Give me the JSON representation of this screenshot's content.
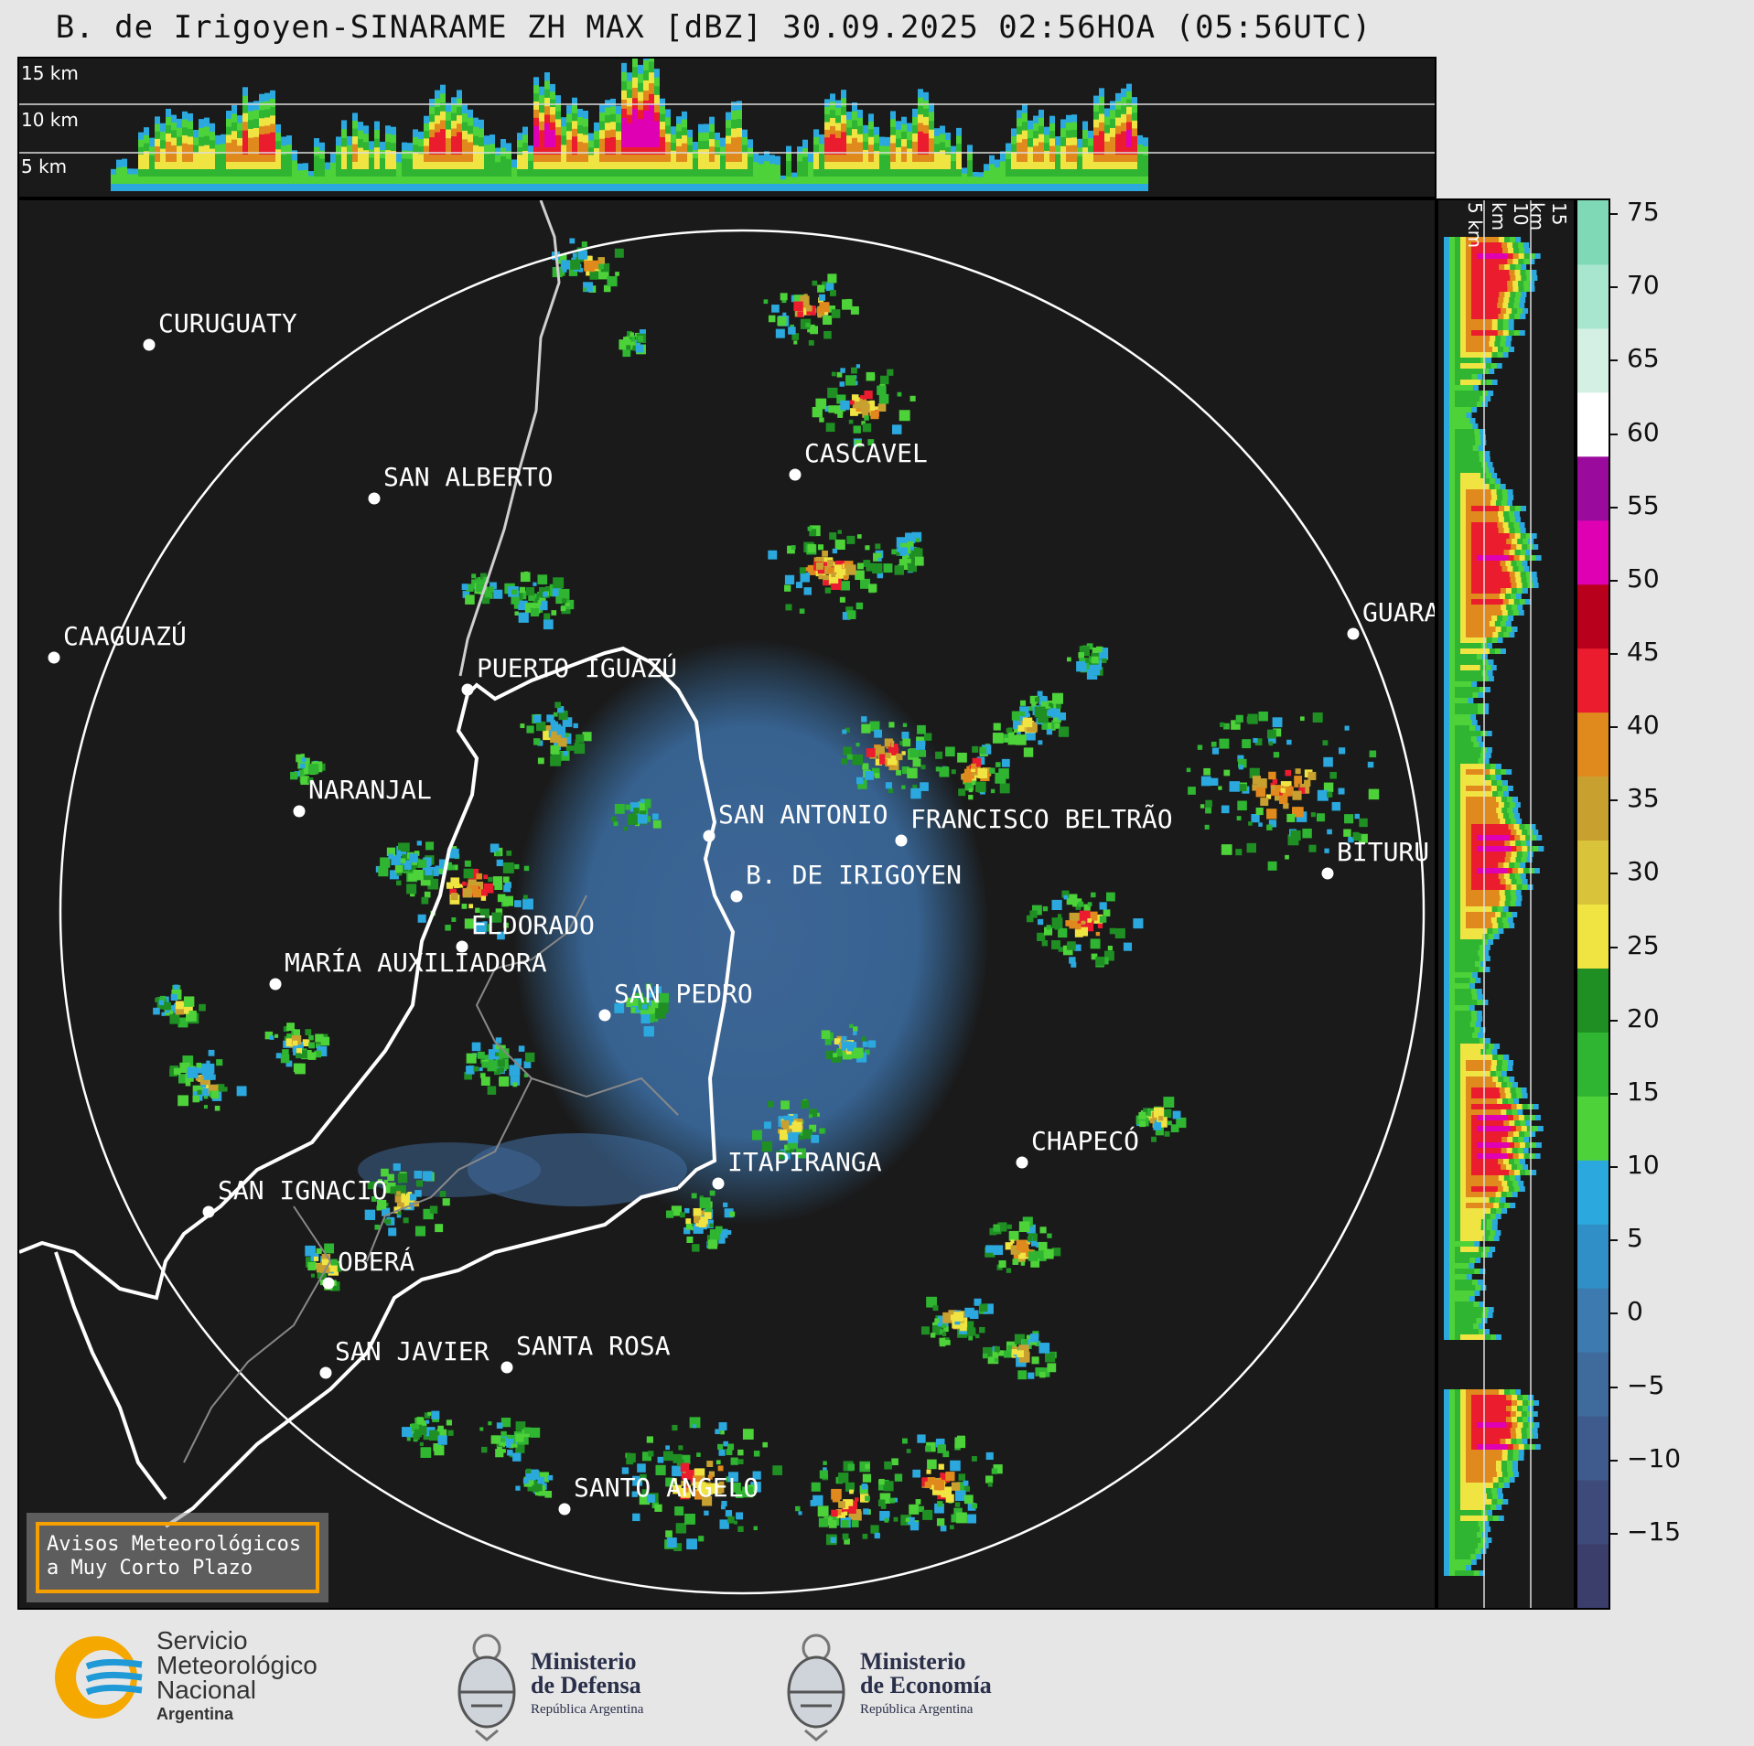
{
  "title": "B. de Irigoyen-SINARAME ZH MAX [dBZ] 30.09.2025 02:56HOA (05:56UTC)",
  "top_panel": {
    "altitudes": [
      "15 km",
      "10 km",
      "5 km"
    ]
  },
  "side_panel": {
    "altitudes": [
      "5 km",
      "10 km",
      "15 km"
    ]
  },
  "colorbar": {
    "ticks": [
      "75",
      "70",
      "65",
      "60",
      "55",
      "50",
      "45",
      "40",
      "35",
      "30",
      "25",
      "20",
      "15",
      "10",
      "5",
      "0",
      "−5",
      "−10",
      "−15"
    ],
    "tick_values": [
      75,
      70,
      65,
      60,
      55,
      50,
      45,
      40,
      35,
      30,
      25,
      20,
      15,
      10,
      5,
      0,
      -5,
      -10,
      -15
    ],
    "range": [
      -20,
      76
    ],
    "colors": [
      "#3b3d6b",
      "#3e4a7a",
      "#3f5a8c",
      "#3f6a9c",
      "#3c7ab0",
      "#2f8fc6",
      "#2ba9de",
      "#4ed23a",
      "#2fb532",
      "#1f8f24",
      "#f0e442",
      "#d8c33b",
      "#c8a030",
      "#e08a1d",
      "#ea1c2d",
      "#b8001c",
      "#e000b4",
      "#9a0a9c",
      "#ffffff",
      "#d4f0e4",
      "#a8e6cf",
      "#7fd8b6"
    ]
  },
  "cities": [
    {
      "name": "CURUGUATY"
    },
    {
      "name": "SAN ALBERTO"
    },
    {
      "name": "CAAGUAZÚ"
    },
    {
      "name": "PUERTO IGUAZÚ"
    },
    {
      "name": "CASCAVEL"
    },
    {
      "name": "GUARA"
    },
    {
      "name": "NARANJAL"
    },
    {
      "name": "SAN ANTONIO"
    },
    {
      "name": "FRANCISCO BELTRÃO"
    },
    {
      "name": "B. DE IRIGOYEN"
    },
    {
      "name": "BITURU"
    },
    {
      "name": "ELDORADO"
    },
    {
      "name": "MARÍA AUXILIADORA"
    },
    {
      "name": "SAN PEDRO"
    },
    {
      "name": "CHAPECÓ"
    },
    {
      "name": "ITAPIRANGA"
    },
    {
      "name": "SAN IGNACIO"
    },
    {
      "name": "OBERÁ"
    },
    {
      "name": "SAN JAVIER"
    },
    {
      "name": "SANTA ROSA"
    },
    {
      "name": "SANTO ANGELO"
    }
  ],
  "warning": {
    "line1": "Avisos Meteorológicos",
    "line2": "a Muy Corto Plazo"
  },
  "footer": {
    "smn": {
      "line1": "Servicio",
      "line2": "Meteorológico",
      "line3": "Nacional",
      "line4": "Argentina"
    },
    "defensa": {
      "line1": "Ministerio",
      "line2": "de Defensa",
      "line3": "República Argentina"
    },
    "economia": {
      "line1": "Ministerio",
      "line2": "de Economía",
      "line3": "República Argentina"
    }
  }
}
